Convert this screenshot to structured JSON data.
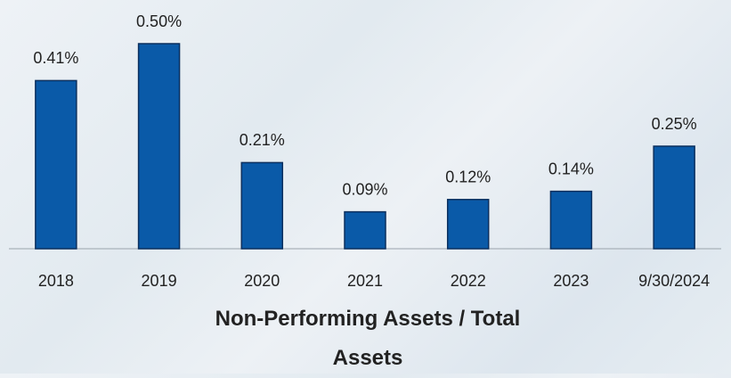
{
  "chart_data": {
    "type": "bar",
    "title": "Non-Performing Assets / Total Assets",
    "categories": [
      "2018",
      "2019",
      "2020",
      "2021",
      "2022",
      "2023",
      "9/30/2024"
    ],
    "values": [
      0.41,
      0.5,
      0.21,
      0.09,
      0.12,
      0.14,
      0.25
    ],
    "value_labels": [
      "0.41%",
      "0.50%",
      "0.21%",
      "0.09%",
      "0.12%",
      "0.14%",
      "0.25%"
    ],
    "color": "#0a5aa8"
  }
}
